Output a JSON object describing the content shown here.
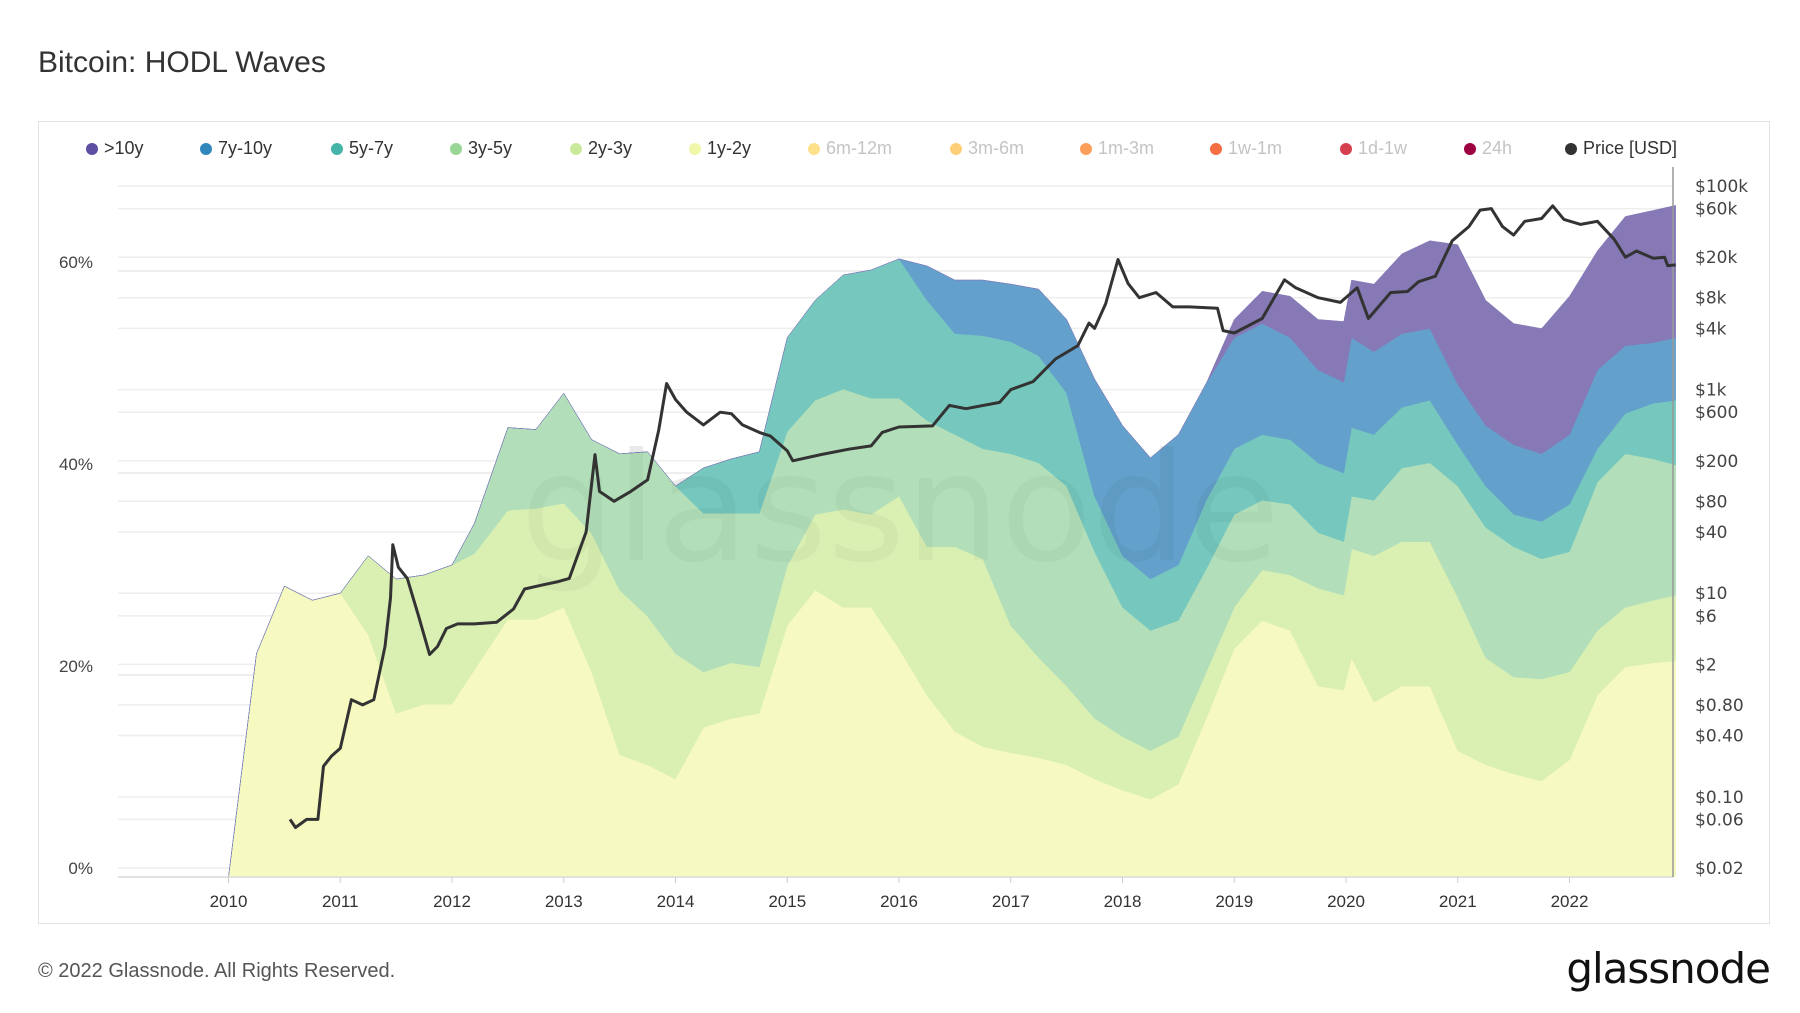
{
  "title": "Bitcoin: HODL Waves",
  "footer": "© 2022 Glassnode. All Rights Reserved.",
  "logo": "glassnode",
  "watermark": "glassnode",
  "legend": [
    {
      "label": ">10y",
      "color": "#5e4fa2",
      "active": true
    },
    {
      "label": "7y-10y",
      "color": "#3288bd",
      "active": true
    },
    {
      "label": "5y-7y",
      "color": "#45b5aa",
      "active": true
    },
    {
      "label": "3y-5y",
      "color": "#99d594",
      "active": true
    },
    {
      "label": "2y-3y",
      "color": "#c9ea9a",
      "active": true
    },
    {
      "label": "1y-2y",
      "color": "#f1f7a8",
      "active": true
    },
    {
      "label": "6m-12m",
      "color": "#fee08b",
      "active": false
    },
    {
      "label": "3m-6m",
      "color": "#fdd078",
      "active": false
    },
    {
      "label": "1m-3m",
      "color": "#fc9e5a",
      "active": false
    },
    {
      "label": "1w-1m",
      "color": "#f46d43",
      "active": false
    },
    {
      "label": "1d-1w",
      "color": "#d53e4f",
      "active": false
    },
    {
      "label": "24h",
      "color": "#9e0142",
      "active": false
    },
    {
      "label": "Price [USD]",
      "color": "#333333",
      "active": true
    }
  ],
  "chart_data": {
    "type": "area",
    "stacked": true,
    "title": "Bitcoin: HODL Waves",
    "x_ticks": [
      "2010",
      "2011",
      "2012",
      "2013",
      "2014",
      "2015",
      "2016",
      "2017",
      "2018",
      "2019",
      "2020",
      "2021",
      "2022"
    ],
    "y_left": {
      "ticks": [
        "0%",
        "20%",
        "40%",
        "60%"
      ],
      "range": [
        0,
        70
      ]
    },
    "y_right": {
      "scale": "log",
      "range": [
        0.02,
        100000
      ],
      "ticks": [
        {
          "label": "$100k",
          "value": 100000
        },
        {
          "label": "$60k",
          "value": 60000
        },
        {
          "label": "$20k",
          "value": 20000
        },
        {
          "label": "$8k",
          "value": 8000
        },
        {
          "label": "$4k",
          "value": 4000
        },
        {
          "label": "$1k",
          "value": 1000
        },
        {
          "label": "$600",
          "value": 600
        },
        {
          "label": "$200",
          "value": 200
        },
        {
          "label": "$80",
          "value": 80
        },
        {
          "label": "$40",
          "value": 40
        },
        {
          "label": "$10",
          "value": 10
        },
        {
          "label": "$6",
          "value": 6
        },
        {
          "label": "$2",
          "value": 2
        },
        {
          "label": "$0.80",
          "value": 0.8
        },
        {
          "label": "$0.40",
          "value": 0.4
        },
        {
          "label": "$0.10",
          "value": 0.1
        },
        {
          "label": "$0.06",
          "value": 0.06
        },
        {
          "label": "$0.02",
          "value": 0.02
        }
      ]
    },
    "grid": true,
    "legend_position": "top",
    "x": [
      2010.0,
      2010.25,
      2010.5,
      2010.75,
      2011.0,
      2011.25,
      2011.5,
      2011.75,
      2012.0,
      2012.2,
      2012.5,
      2012.75,
      2013.0,
      2013.25,
      2013.5,
      2013.75,
      2014.0,
      2014.25,
      2014.5,
      2014.75,
      2015.0,
      2015.25,
      2015.5,
      2015.75,
      2016.0,
      2016.25,
      2016.5,
      2016.75,
      2017.0,
      2017.25,
      2017.5,
      2017.75,
      2018.0,
      2018.25,
      2018.5,
      2018.75,
      2019.0,
      2019.25,
      2019.5,
      2019.75,
      2019.98,
      2020.05,
      2020.25,
      2020.5,
      2020.75,
      2021.0,
      2021.25,
      2021.5,
      2021.75,
      2022.0,
      2022.25,
      2022.5,
      2022.75,
      2022.95
    ],
    "series": [
      {
        "name": "1y-2y",
        "fill": "#f6f9c0",
        "values": [
          0,
          22.1,
          28.8,
          27.4,
          28.1,
          24,
          16.2,
          17.1,
          17.1,
          20.5,
          25.5,
          25.5,
          26.7,
          20.3,
          12.1,
          11.1,
          9.7,
          14.8,
          15.7,
          16.2,
          24.9,
          28.4,
          26.7,
          26.7,
          22.6,
          18,
          14.4,
          12.9,
          12.3,
          11.8,
          11.1,
          9.7,
          8.6,
          7.7,
          9.2,
          15.7,
          22.6,
          25.4,
          24.4,
          18.9,
          18.5,
          21.7,
          17.3,
          18.9,
          18.9,
          12.5,
          11.1,
          10.2,
          9.5,
          11.6,
          18,
          20.8,
          21.2,
          21.4
        ]
      },
      {
        "name": "2y-3y",
        "fill": "#daf0b3",
        "values": [
          0,
          0,
          0,
          0,
          0,
          7.8,
          13.3,
          12.8,
          13.8,
          11.5,
          10.8,
          11,
          10.3,
          13.7,
          16.3,
          14.7,
          12.4,
          5.5,
          5.5,
          4.6,
          5.9,
          7.5,
          9.7,
          9.2,
          15.1,
          14.7,
          18.3,
          18.6,
          12.6,
          9.9,
          7.8,
          6,
          5.3,
          4.8,
          4.7,
          4.6,
          4.1,
          5,
          5.5,
          9.7,
          9.4,
          10.8,
          14.5,
          14.3,
          14.3,
          15.2,
          10.6,
          9.6,
          10.1,
          8.7,
          6.4,
          5.9,
          6.2,
          6.5
        ]
      },
      {
        "name": "3y-5y",
        "fill": "#b2dfb9",
        "values": [
          0,
          0,
          0,
          0,
          0,
          0,
          0,
          0,
          0,
          3,
          8.2,
          7.8,
          10.9,
          9.3,
          13.5,
          16.3,
          16.6,
          15.7,
          14.8,
          15.2,
          13.3,
          11.3,
          11.9,
          11.5,
          9.7,
          12.5,
          11.1,
          10.9,
          17,
          19.3,
          19.8,
          16.5,
          12.8,
          11.9,
          11.5,
          10.2,
          9.2,
          6.9,
          7,
          5.5,
          5.3,
          5.2,
          5.5,
          7.3,
          7.8,
          11,
          12.9,
          12.9,
          11.9,
          11.9,
          14.7,
          15.2,
          14,
          12.9
        ]
      },
      {
        "name": "5y-7y",
        "fill": "#76c8bf",
        "values": [
          0,
          0,
          0,
          0,
          0,
          0,
          0,
          0,
          0,
          0,
          0,
          0,
          0,
          0,
          0,
          0,
          0,
          4.5,
          5.4,
          6.1,
          9.3,
          9.9,
          11.3,
          12.7,
          13.8,
          11.9,
          10,
          11.2,
          11.1,
          10.6,
          9.2,
          5.5,
          5.1,
          5.1,
          5.5,
          6.8,
          6.5,
          6.5,
          6.4,
          6.9,
          6.8,
          6.8,
          6.5,
          6,
          6.2,
          4.1,
          4.1,
          3.2,
          3.7,
          4.7,
          3.3,
          4,
          5.5,
          6.4
        ]
      },
      {
        "name": "7y-10y",
        "fill": "#63a0cb",
        "values": [
          0,
          0,
          0,
          0,
          0,
          0,
          0,
          0,
          0,
          0,
          0,
          0,
          0,
          0,
          0,
          0,
          0,
          0,
          0,
          0,
          0,
          0,
          0,
          0,
          0,
          3.4,
          5.3,
          5.5,
          5.7,
          6.6,
          7.3,
          11.6,
          12.9,
          12,
          12.9,
          11.6,
          11,
          11,
          10.1,
          9.2,
          9,
          8.9,
          8.2,
          7.3,
          7.1,
          6,
          6,
          6.9,
          6.7,
          6.9,
          7.8,
          6.7,
          6,
          6.2
        ]
      },
      {
        "name": ">10y",
        "fill": "#8679b6",
        "values": [
          0,
          0,
          0,
          0,
          0,
          0,
          0,
          0,
          0,
          0,
          0,
          0,
          0,
          0,
          0,
          0,
          0,
          0,
          0,
          0,
          0,
          0,
          0,
          0,
          0,
          0,
          0,
          0,
          0,
          0,
          0,
          0,
          0,
          0,
          0,
          0,
          1.8,
          3.2,
          4.1,
          5,
          6,
          5.7,
          6.7,
          7.9,
          8.7,
          13.8,
          12.4,
          12,
          12.4,
          13.7,
          11.8,
          12.8,
          13.1,
          13.1
        ]
      }
    ],
    "price": {
      "name": "Price [USD]",
      "x": [
        2010.55,
        2010.6,
        2010.7,
        2010.8,
        2010.85,
        2010.92,
        2011.0,
        2011.1,
        2011.2,
        2011.3,
        2011.4,
        2011.45,
        2011.47,
        2011.52,
        2011.6,
        2011.7,
        2011.8,
        2011.87,
        2011.95,
        2012.05,
        2012.2,
        2012.4,
        2012.55,
        2012.65,
        2012.8,
        2012.95,
        2013.05,
        2013.2,
        2013.28,
        2013.32,
        2013.45,
        2013.6,
        2013.75,
        2013.85,
        2013.92,
        2014.0,
        2014.1,
        2014.25,
        2014.4,
        2014.5,
        2014.6,
        2014.75,
        2014.85,
        2015.0,
        2015.05,
        2015.3,
        2015.55,
        2015.75,
        2015.85,
        2016.0,
        2016.3,
        2016.45,
        2016.6,
        2016.9,
        2017.0,
        2017.2,
        2017.4,
        2017.6,
        2017.7,
        2017.75,
        2017.85,
        2017.96,
        2018.05,
        2018.15,
        2018.3,
        2018.45,
        2018.6,
        2018.85,
        2018.9,
        2019.0,
        2019.25,
        2019.45,
        2019.55,
        2019.75,
        2019.95,
        2020.1,
        2020.2,
        2020.4,
        2020.55,
        2020.65,
        2020.8,
        2020.95,
        2021.1,
        2021.2,
        2021.3,
        2021.4,
        2021.5,
        2021.6,
        2021.75,
        2021.85,
        2021.95,
        2022.1,
        2022.25,
        2022.4,
        2022.5,
        2022.6,
        2022.75,
        2022.85,
        2022.88,
        2022.95
      ],
      "values": [
        0.06,
        0.05,
        0.06,
        0.06,
        0.2,
        0.25,
        0.3,
        0.9,
        0.8,
        0.9,
        3,
        9,
        30,
        18,
        14,
        6,
        2.5,
        3,
        4.5,
        5,
        5,
        5.2,
        7,
        11,
        12,
        13,
        14,
        40,
        230,
        100,
        80,
        100,
        130,
        400,
        1150,
        800,
        600,
        450,
        600,
        580,
        450,
        380,
        350,
        250,
        200,
        230,
        260,
        280,
        380,
        430,
        440,
        700,
        650,
        750,
        1000,
        1200,
        2000,
        2700,
        4500,
        4000,
        7000,
        19000,
        11000,
        8000,
        9000,
        6500,
        6500,
        6300,
        3800,
        3600,
        5000,
        12000,
        10000,
        8000,
        7200,
        10000,
        5000,
        9000,
        9200,
        11500,
        13000,
        29000,
        40000,
        58000,
        60000,
        40000,
        33000,
        45000,
        48000,
        64000,
        47000,
        42000,
        45000,
        30000,
        20000,
        23000,
        19500,
        20000,
        16500,
        16800
      ]
    }
  }
}
